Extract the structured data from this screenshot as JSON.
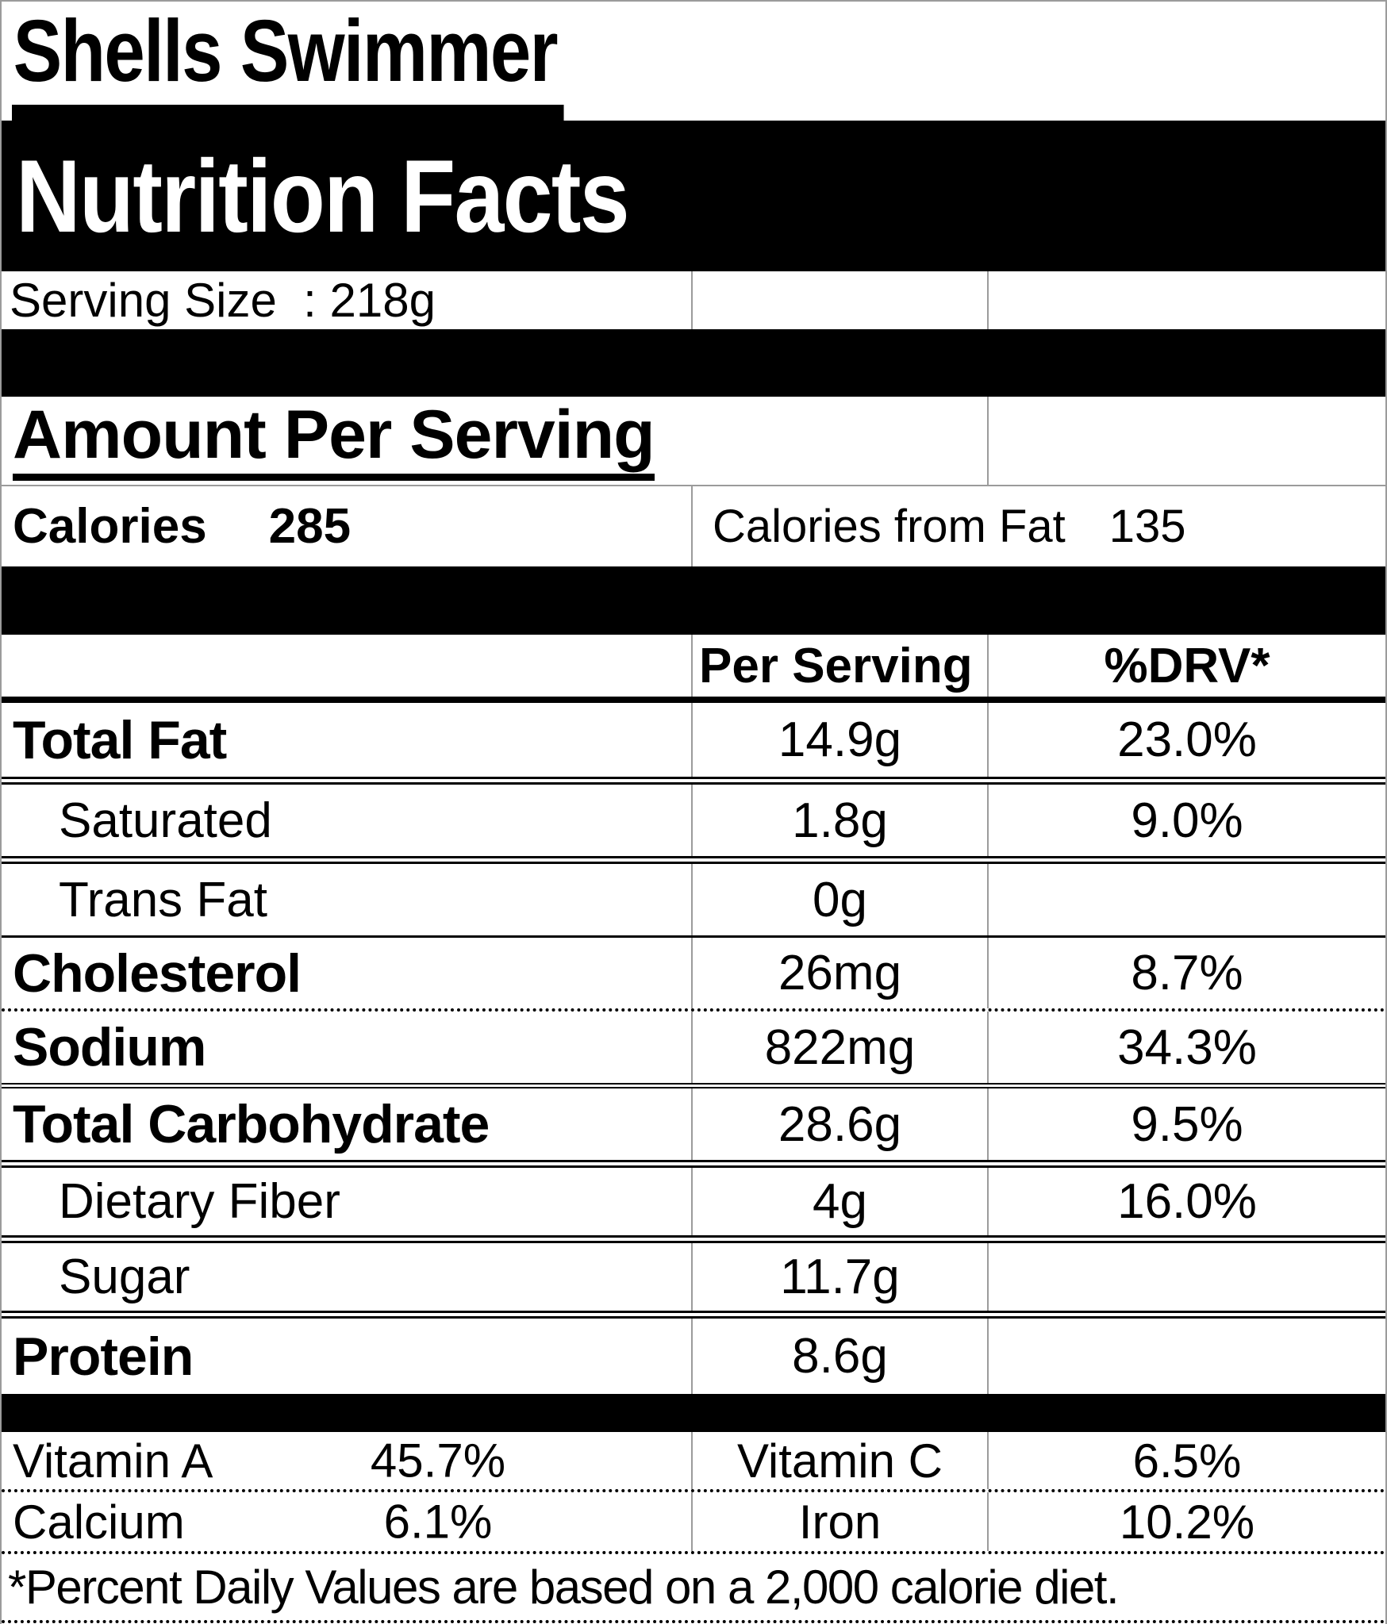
{
  "label": {
    "product_name": "Shells Swimmer",
    "title": "Nutrition Facts",
    "serving_size": "Serving Size  : 218g",
    "amount_per_serving": "Amount Per Serving",
    "calories": {
      "label": "Calories",
      "value": "285"
    },
    "calories_from_fat": {
      "label": "Calories from Fat",
      "value": "135"
    },
    "columns": {
      "per_serving": "Per Serving",
      "drv": "%DRV*"
    },
    "nutrients": [
      {
        "name": "Total Fat",
        "amount": "14.9g",
        "drv": "23.0%"
      },
      {
        "name": "Saturated",
        "amount": "1.8g",
        "drv": "9.0%"
      },
      {
        "name": "Trans Fat",
        "amount": "0g",
        "drv": ""
      },
      {
        "name": "Cholesterol",
        "amount": "26mg",
        "drv": "8.7%"
      },
      {
        "name": "Sodium",
        "amount": "822mg",
        "drv": "34.3%"
      },
      {
        "name": "Total Carbohydrate",
        "amount": "28.6g",
        "drv": "9.5%"
      },
      {
        "name": "Dietary Fiber",
        "amount": "4g",
        "drv": "16.0%"
      },
      {
        "name": "Sugar",
        "amount": "11.7g",
        "drv": ""
      },
      {
        "name": "Protein",
        "amount": "8.6g",
        "drv": ""
      }
    ],
    "micronutrients": [
      {
        "name": "Vitamin A",
        "value": "45.7%"
      },
      {
        "name": "Vitamin C",
        "value": "6.5%"
      },
      {
        "name": "Calcium",
        "value": "6.1%"
      },
      {
        "name": "Iron",
        "value": "10.2%"
      }
    ],
    "footnote": "*Percent Daily Values are based on a 2,000 calorie diet.",
    "colors": {
      "bar": "#000000",
      "bar_text": "#ffffff",
      "gridline": "#9b9b9b"
    }
  }
}
